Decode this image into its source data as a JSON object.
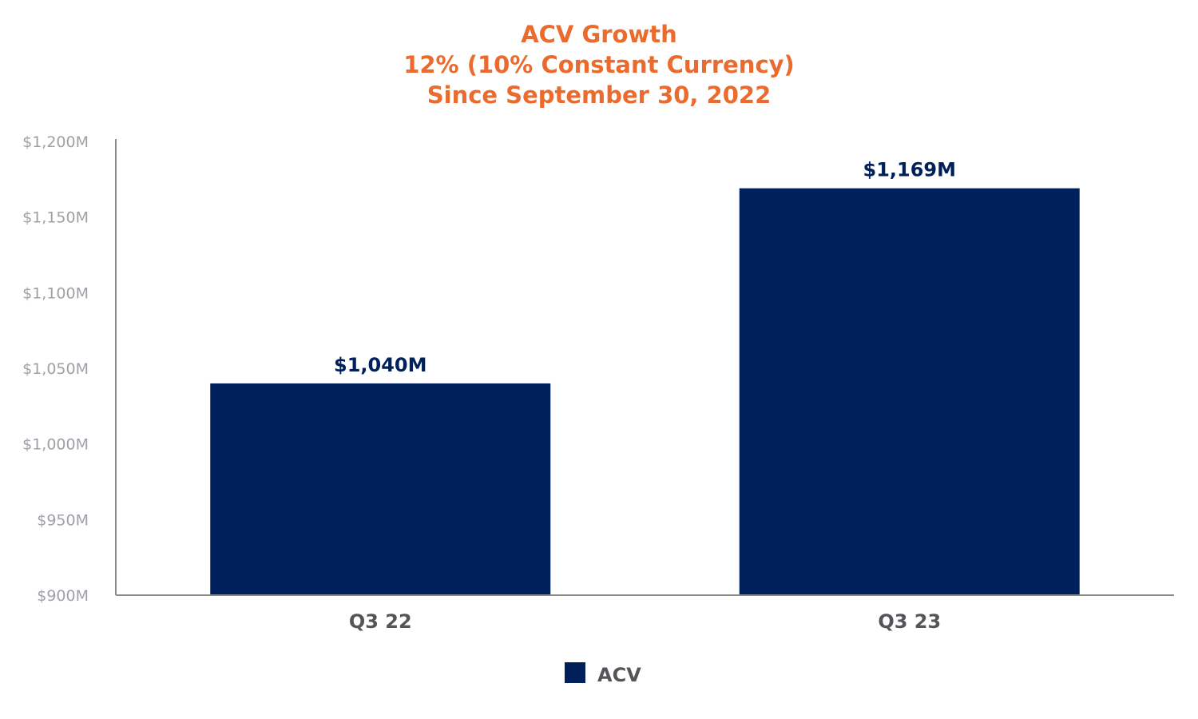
{
  "chart_data": {
    "type": "bar",
    "title_lines": [
      "ACV Growth",
      "12% (10% Constant Currency)",
      "Since September 30, 2022"
    ],
    "categories": [
      "Q3 22",
      "Q3 23"
    ],
    "series": [
      {
        "name": "ACV",
        "values": [
          1040,
          1169
        ],
        "labels": [
          "$1,040M",
          "$1,169M"
        ]
      }
    ],
    "ylim": [
      900,
      1200
    ],
    "yticks": [
      900,
      950,
      1000,
      1050,
      1100,
      1150,
      1200
    ],
    "ytick_labels": [
      "$900M",
      "$950M",
      "$1,000M",
      "$1,050M",
      "$1,100M",
      "$1,150M",
      "$1,200M"
    ],
    "xlabel": "",
    "ylabel": "",
    "grid": false,
    "legend_position": "bottom-center"
  },
  "colors": {
    "title": "#ea6b2d",
    "bar": "#00205b",
    "data_label": "#00205b",
    "tick_label": "#a0a0a8",
    "category_label": "#555559",
    "legend_text": "#555559",
    "axis": "#8c8c8c"
  }
}
